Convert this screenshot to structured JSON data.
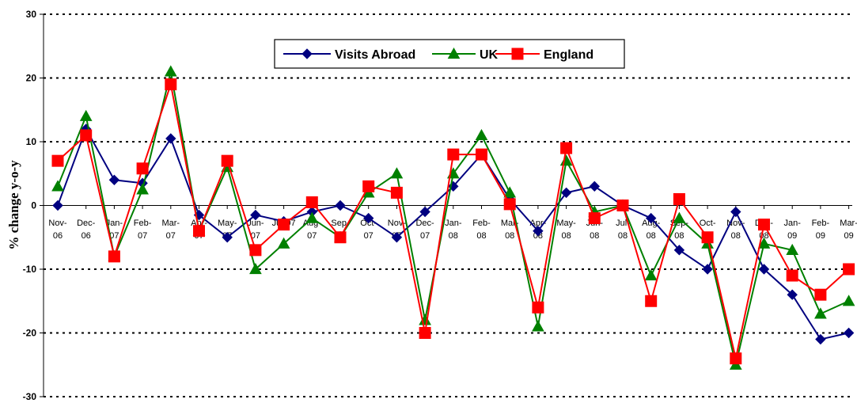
{
  "chart_data": {
    "type": "line",
    "title": "",
    "xlabel": "",
    "ylabel": "% change y-o-y",
    "ylim": [
      -30,
      30
    ],
    "yticks": [
      -30,
      -20,
      -10,
      0,
      10,
      20,
      30
    ],
    "grid": true,
    "legend_position": "top-center",
    "categories": [
      [
        "Nov-",
        "06"
      ],
      [
        "Dec-",
        "06"
      ],
      [
        "Jan-",
        "07"
      ],
      [
        "Feb-",
        "07"
      ],
      [
        "Mar-",
        "07"
      ],
      [
        "Apr-",
        "07"
      ],
      [
        "May-",
        "07"
      ],
      [
        "Jun-",
        "07"
      ],
      [
        "Jul-07",
        ""
      ],
      [
        "Aug-",
        "07"
      ],
      [
        "Sep-",
        "07"
      ],
      [
        "Oct-",
        "07"
      ],
      [
        "Nov-",
        "07"
      ],
      [
        "Dec-",
        "07"
      ],
      [
        "Jan-",
        "08"
      ],
      [
        "Feb-",
        "08"
      ],
      [
        "Mar-",
        "08"
      ],
      [
        "Apr-",
        "08"
      ],
      [
        "May-",
        "08"
      ],
      [
        "Jun-",
        "08"
      ],
      [
        "Jul-",
        "08"
      ],
      [
        "Aug-",
        "08"
      ],
      [
        "Sep-",
        "08"
      ],
      [
        "Oct-",
        "08"
      ],
      [
        "Nov-",
        "08"
      ],
      [
        "Dec-",
        "08"
      ],
      [
        "Jan-",
        "09"
      ],
      [
        "Feb-",
        "09"
      ],
      [
        "Mar-",
        "09"
      ]
    ],
    "series": [
      {
        "name": "Visits Abroad",
        "color": "#000080",
        "marker": "diamond",
        "values": [
          0,
          12,
          4,
          3.5,
          10.5,
          -1.5,
          -5,
          -1.5,
          -2.5,
          -1,
          0,
          -2,
          -5,
          -1,
          3,
          8,
          1,
          -4,
          2,
          3,
          0,
          -2,
          -7,
          -10,
          -1,
          -10,
          -14,
          -21,
          -20
        ]
      },
      {
        "name": "UK",
        "color": "#008000",
        "marker": "triangle",
        "values": [
          3,
          14,
          -8,
          2.5,
          21,
          -4,
          6,
          -10,
          -6,
          -2,
          -5,
          2,
          5,
          -18,
          5,
          11,
          2,
          -19,
          7,
          -1,
          0,
          -11,
          -2,
          -6,
          -25,
          -6,
          -7,
          -17,
          -15
        ]
      },
      {
        "name": "England",
        "color": "#ff0000",
        "marker": "square",
        "values": [
          7,
          11,
          -8,
          5.8,
          19,
          -4,
          7,
          -7,
          -3,
          0.5,
          -5,
          3,
          2,
          -20,
          8,
          8,
          0.2,
          -16,
          9,
          -2,
          0,
          -15,
          1,
          -5,
          -24,
          -3,
          -11,
          -14,
          -10
        ]
      }
    ]
  }
}
